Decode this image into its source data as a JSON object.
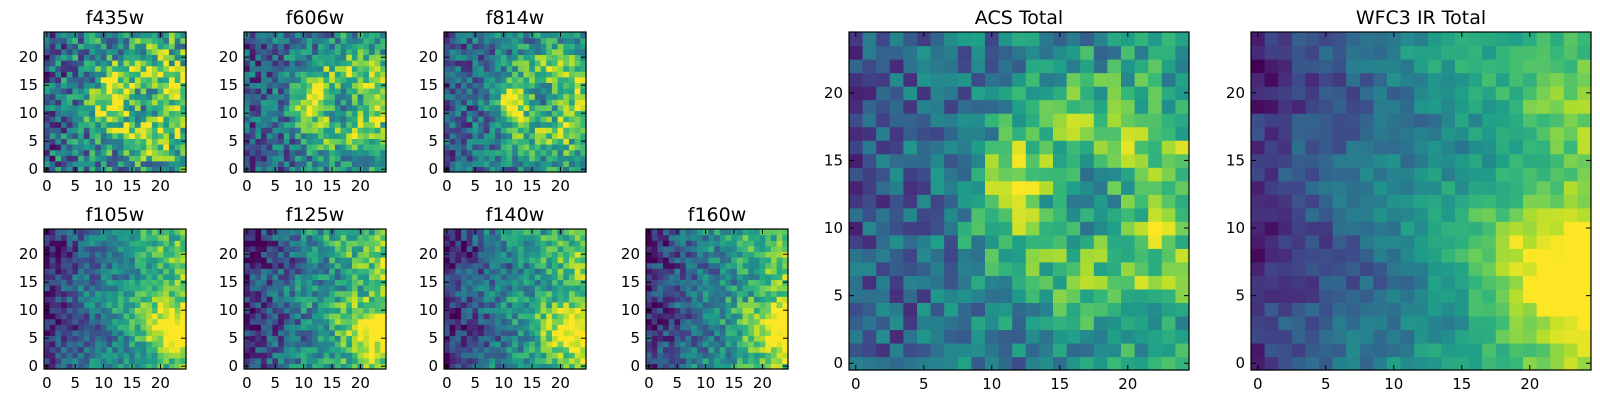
{
  "colormap": {
    "name": "viridis",
    "stops": [
      "#440154",
      "#482878",
      "#3e4989",
      "#31688e",
      "#26828e",
      "#1f9e89",
      "#35b779",
      "#6ece58",
      "#b5de2b",
      "#fde725"
    ]
  },
  "chart_data": [
    {
      "type": "heatmap",
      "title": "f435w",
      "grid_size": 25,
      "xticks": [
        0,
        5,
        10,
        15,
        20
      ],
      "yticks": [
        0,
        5,
        10,
        15,
        20
      ],
      "pattern": "noisy-bright-knot",
      "noise": 0.32,
      "blob": [
        12,
        13,
        2.2
      ]
    },
    {
      "type": "heatmap",
      "title": "f606w",
      "grid_size": 25,
      "xticks": [
        0,
        5,
        10,
        15,
        20
      ],
      "yticks": [
        0,
        5,
        10,
        15,
        20
      ],
      "pattern": "arc-knot",
      "noise": 0.25,
      "blob": [
        12,
        12,
        2.0
      ]
    },
    {
      "type": "heatmap",
      "title": "f814w",
      "grid_size": 25,
      "xticks": [
        0,
        5,
        10,
        15,
        20
      ],
      "yticks": [
        0,
        5,
        10,
        15,
        20
      ],
      "pattern": "arc-knot",
      "noise": 0.24,
      "blob": [
        12,
        12,
        1.8
      ]
    },
    {
      "type": "heatmap",
      "title": "f105w",
      "grid_size": 25,
      "xticks": [
        0,
        5,
        10,
        15,
        20
      ],
      "yticks": [
        0,
        5,
        10,
        15,
        20
      ],
      "pattern": "right-gradient",
      "noise": 0.18,
      "blob": [
        22,
        7,
        4
      ]
    },
    {
      "type": "heatmap",
      "title": "f125w",
      "grid_size": 25,
      "xticks": [
        0,
        5,
        10,
        15,
        20
      ],
      "yticks": [
        0,
        5,
        10,
        15,
        20
      ],
      "pattern": "right-gradient",
      "noise": 0.22,
      "blob": [
        22,
        6,
        4
      ]
    },
    {
      "type": "heatmap",
      "title": "f140w",
      "grid_size": 25,
      "xticks": [
        0,
        5,
        10,
        15,
        20
      ],
      "yticks": [
        0,
        5,
        10,
        15,
        20
      ],
      "pattern": "right-gradient",
      "noise": 0.2,
      "blob": [
        22,
        6,
        4
      ]
    },
    {
      "type": "heatmap",
      "title": "f160w",
      "grid_size": 25,
      "xticks": [
        0,
        5,
        10,
        15,
        20
      ],
      "yticks": [
        0,
        5,
        10,
        15,
        20
      ],
      "pattern": "right-gradient",
      "noise": 0.2,
      "blob": [
        23,
        6,
        4
      ]
    },
    {
      "type": "heatmap",
      "title": "ACS Total",
      "grid_size": 25,
      "xticks": [
        0,
        5,
        10,
        15,
        20
      ],
      "yticks": [
        0,
        5,
        10,
        15,
        20
      ],
      "pattern": "arc-knot",
      "noise": 0.2,
      "blob": [
        11.5,
        13,
        1.6
      ]
    },
    {
      "type": "heatmap",
      "title": "WFC3 IR Total",
      "grid_size": 25,
      "xticks": [
        0,
        5,
        10,
        15,
        20
      ],
      "yticks": [
        0,
        5,
        10,
        15,
        20
      ],
      "pattern": "right-gradient",
      "noise": 0.1,
      "blob": [
        23,
        6,
        5
      ]
    }
  ]
}
